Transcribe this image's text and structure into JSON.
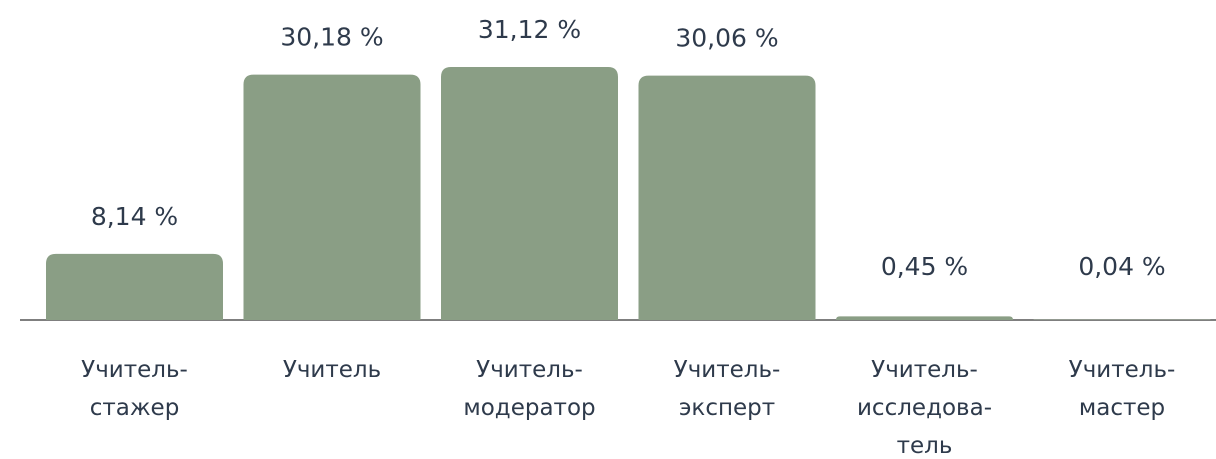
{
  "chart_data": {
    "type": "bar",
    "categories": [
      "Учитель-\nстажер",
      "Учитель",
      "Учитель-\nмодератор",
      "Учитель-\nэксперт",
      "Учитель-\nисследова-\nтель",
      "Учитель-\nмастер"
    ],
    "values": [
      8.14,
      30.18,
      31.12,
      30.06,
      0.45,
      0.04
    ],
    "value_labels": [
      "8,14 %",
      "30,18 %",
      "31,12 %",
      "30,06 %",
      "0,45 %",
      "0,04 %"
    ],
    "color": "#8a9e85"
  }
}
